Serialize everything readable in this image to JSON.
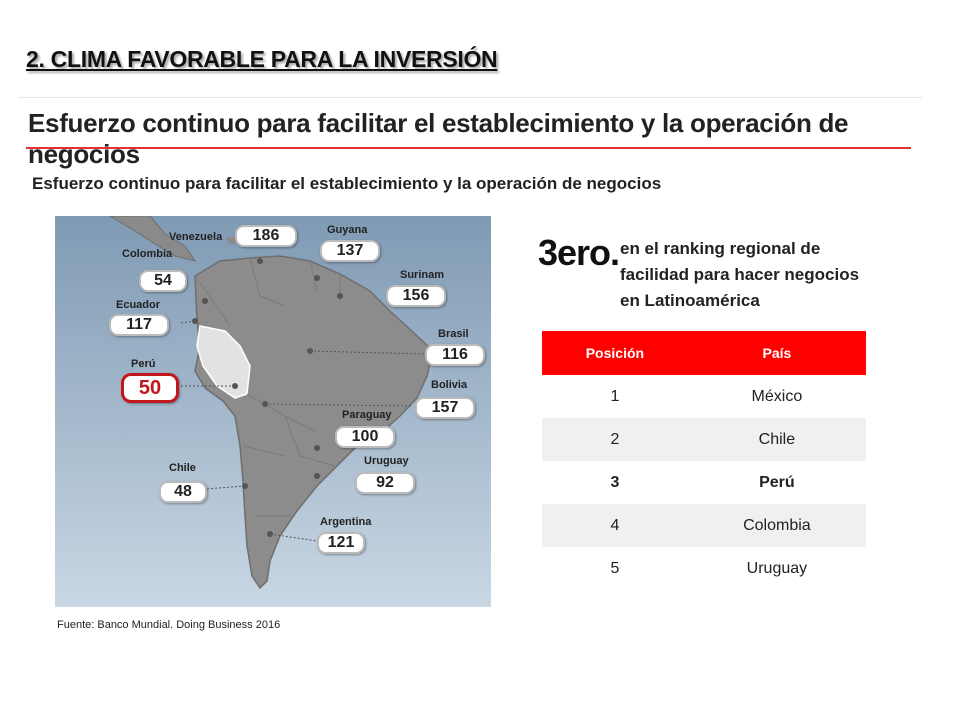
{
  "slide_title": "2.  CLIMA FAVORABLE PARA LA INVERSIÓN",
  "heading": "Esfuerzo continuo para facilitar el establecimiento y la operación de negocios",
  "subheading": "Esfuerzo continuo para facilitar el establecimiento y la operación de negocios",
  "map": {
    "countries": [
      {
        "name": "Venezuela",
        "value": "186"
      },
      {
        "name": "Guyana",
        "value": "137"
      },
      {
        "name": "Colombia",
        "value": "54"
      },
      {
        "name": "Surinam",
        "value": "156"
      },
      {
        "name": "Ecuador",
        "value": "117"
      },
      {
        "name": "Brasil",
        "value": "116"
      },
      {
        "name": "Perú",
        "value": "50"
      },
      {
        "name": "Bolivia",
        "value": "157"
      },
      {
        "name": "Paraguay",
        "value": "100"
      },
      {
        "name": "Uruguay",
        "value": "92"
      },
      {
        "name": "Chile",
        "value": "48"
      },
      {
        "name": "Argentina",
        "value": "121"
      }
    ],
    "highlight_color": "#c0161c"
  },
  "source": "Fuente: Banco Mundial. Doing Business 2016",
  "ranking": {
    "big": "3ero.",
    "text": "en el ranking regional  de facilidad para hacer negocios en Latinoamérica",
    "headers": [
      "Posición",
      "País"
    ],
    "rows": [
      {
        "pos": "1",
        "country": "México"
      },
      {
        "pos": "2",
        "country": "Chile"
      },
      {
        "pos": "3",
        "country": "Perú"
      },
      {
        "pos": "4",
        "country": "Colombia"
      },
      {
        "pos": "5",
        "country": "Uruguay"
      }
    ],
    "header_color": "#ff0000"
  }
}
